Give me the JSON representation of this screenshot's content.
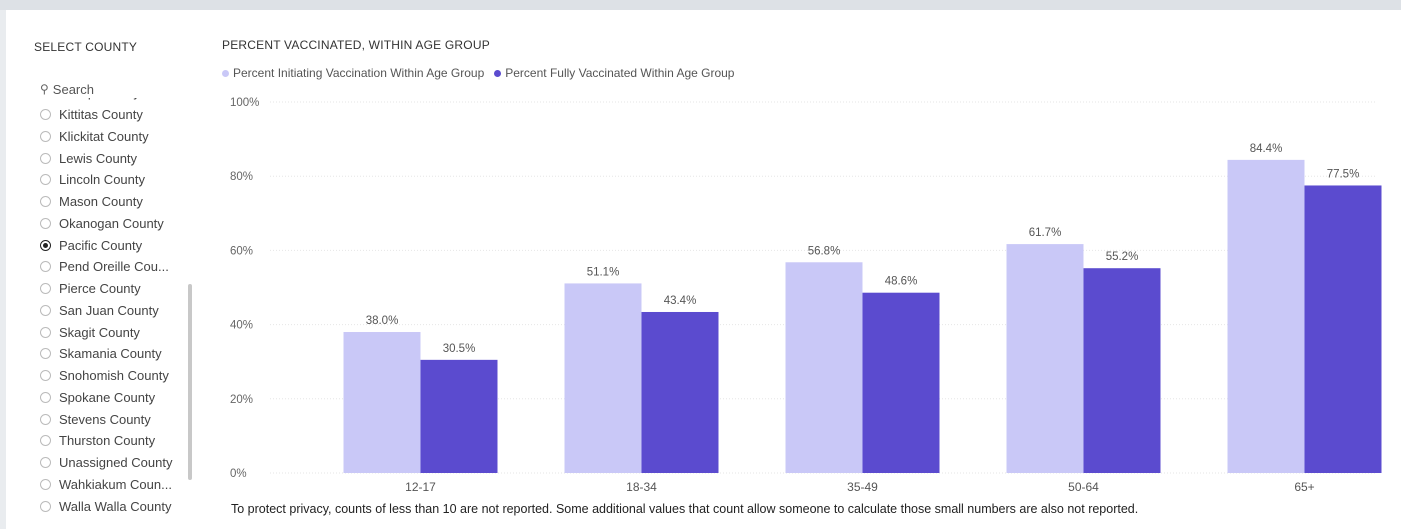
{
  "slicer": {
    "title": "SELECT COUNTY",
    "search_placeholder": "Search",
    "partial_item": "Kitsap County",
    "counties": [
      {
        "label": "Kittitas County",
        "selected": false
      },
      {
        "label": "Klickitat County",
        "selected": false
      },
      {
        "label": "Lewis County",
        "selected": false
      },
      {
        "label": "Lincoln County",
        "selected": false
      },
      {
        "label": "Mason County",
        "selected": false
      },
      {
        "label": "Okanogan County",
        "selected": false
      },
      {
        "label": "Pacific County",
        "selected": true
      },
      {
        "label": "Pend Oreille Cou...",
        "selected": false
      },
      {
        "label": "Pierce County",
        "selected": false
      },
      {
        "label": "San Juan County",
        "selected": false
      },
      {
        "label": "Skagit County",
        "selected": false
      },
      {
        "label": "Skamania County",
        "selected": false
      },
      {
        "label": "Snohomish County",
        "selected": false
      },
      {
        "label": "Spokane County",
        "selected": false
      },
      {
        "label": "Stevens County",
        "selected": false
      },
      {
        "label": "Thurston County",
        "selected": false
      },
      {
        "label": "Unassigned County",
        "selected": false
      },
      {
        "label": "Wahkiakum Coun...",
        "selected": false
      },
      {
        "label": "Walla Walla County",
        "selected": false
      }
    ]
  },
  "chart_data": {
    "type": "bar",
    "title": "PERCENT VACCINATED, WITHIN AGE GROUP",
    "categories": [
      "12-17",
      "18-34",
      "35-49",
      "50-64",
      "65+"
    ],
    "series": [
      {
        "name": "Percent Initiating Vaccination Within Age Group",
        "color": "#c9c8f7",
        "values": [
          38.0,
          51.1,
          56.8,
          61.7,
          84.4
        ],
        "labels": [
          "38.0%",
          "51.1%",
          "56.8%",
          "61.7%",
          "84.4%"
        ]
      },
      {
        "name": "Percent Fully Vaccinated Within Age Group",
        "color": "#5b4bcf",
        "values": [
          30.5,
          43.4,
          48.6,
          55.2,
          77.5
        ],
        "labels": [
          "30.5%",
          "43.4%",
          "48.6%",
          "55.2%",
          "77.5%"
        ]
      }
    ],
    "ylim": [
      0,
      100
    ],
    "yticks": [
      "0%",
      "20%",
      "40%",
      "60%",
      "80%",
      "100%"
    ],
    "xlabel": "",
    "ylabel": "",
    "legend_position": "top-left",
    "gridlines": true
  },
  "footnote": "To protect privacy, counts of less than 10 are not reported. Some additional values that count allow someone to calculate those small numbers are also not reported."
}
